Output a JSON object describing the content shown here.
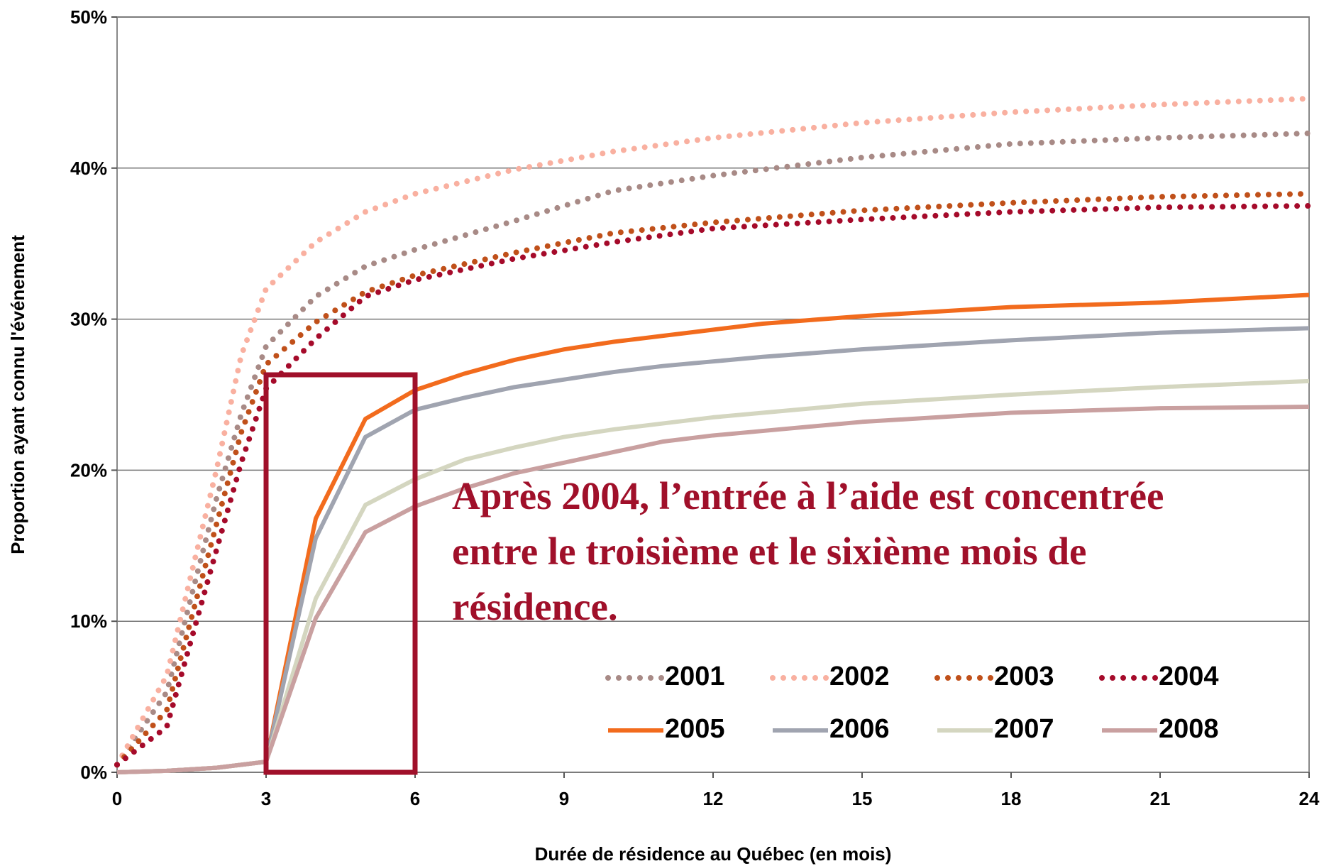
{
  "chart_data": {
    "type": "line",
    "xlabel": "Durée de résidence au Québec (en mois)",
    "ylabel": "Proportion ayant connu l'événement",
    "annotation": [
      "Après 2004, l’entrée à l’aide est concentrée",
      "entre le troisième et le sixième mois de",
      "résidence."
    ],
    "xlim": [
      0,
      24
    ],
    "xticks": [
      0,
      3,
      6,
      9,
      12,
      15,
      18,
      21,
      24
    ],
    "ylim": [
      0,
      50
    ],
    "yticks": [
      {
        "value": 0,
        "label": "0%"
      },
      {
        "value": 10,
        "label": "10%"
      },
      {
        "value": 20,
        "label": "20%"
      },
      {
        "value": 30,
        "label": "30%"
      },
      {
        "value": 40,
        "label": "40%"
      },
      {
        "value": 50,
        "label": "50%"
      }
    ],
    "grid": true,
    "series": [
      {
        "name": "2001",
        "color": "#a88a86",
        "style": "dotted",
        "x": [
          0,
          1,
          2,
          2.5,
          3,
          4,
          5,
          6,
          8,
          10,
          12,
          15,
          18,
          21,
          24
        ],
        "values": [
          0.5,
          5.3,
          18.1,
          23.7,
          28.2,
          31.5,
          33.5,
          34.6,
          36.5,
          38.5,
          39.5,
          40.7,
          41.6,
          42,
          42.3
        ]
      },
      {
        "name": "2002",
        "color": "#f9b0a0",
        "style": "dotted",
        "x": [
          0,
          1,
          2,
          2.5,
          3,
          4,
          5,
          6,
          8,
          10,
          12,
          15,
          18,
          21,
          24
        ],
        "values": [
          0.5,
          6.4,
          20,
          27.6,
          32,
          35.1,
          37.1,
          38.3,
          39.9,
          41.1,
          42,
          43,
          43.7,
          44.2,
          44.6
        ]
      },
      {
        "name": "2003",
        "color": "#c0501a",
        "style": "dotted",
        "x": [
          0,
          1,
          2,
          2.5,
          3,
          4,
          5,
          6,
          8,
          10,
          12,
          15,
          18,
          21,
          24
        ],
        "values": [
          0.5,
          4.1,
          16.4,
          22.5,
          27,
          29.8,
          31.8,
          32.9,
          34.4,
          35.7,
          36.4,
          37.2,
          37.7,
          38.1,
          38.3
        ]
      },
      {
        "name": "2004",
        "color": "#a50a2a",
        "style": "dotted",
        "x": [
          0,
          1,
          2,
          2.5,
          3,
          4,
          5,
          6,
          8,
          10,
          12,
          15,
          18,
          21,
          24
        ],
        "values": [
          0.5,
          3,
          14.7,
          20.5,
          25.4,
          28.7,
          31.5,
          32.6,
          34,
          35.1,
          36,
          36.6,
          37.1,
          37.4,
          37.5
        ]
      },
      {
        "name": "2005",
        "color": "#f26b1d",
        "style": "solid",
        "x": [
          0,
          1,
          2,
          3,
          4,
          5,
          6,
          7,
          8,
          9,
          10,
          11,
          12,
          13,
          15,
          18,
          21,
          24
        ],
        "values": [
          0,
          0.1,
          0.3,
          0.7,
          16.8,
          23.4,
          25.3,
          26.4,
          27.3,
          28,
          28.5,
          28.9,
          29.3,
          29.7,
          30.2,
          30.8,
          31.1,
          31.6
        ]
      },
      {
        "name": "2006",
        "color": "#a0a4b0",
        "style": "solid",
        "x": [
          0,
          1,
          2,
          3,
          4,
          5,
          6,
          7,
          8,
          9,
          10,
          11,
          12,
          13,
          15,
          18,
          21,
          24
        ],
        "values": [
          0,
          0.1,
          0.3,
          0.7,
          15.5,
          22.2,
          24,
          24.8,
          25.5,
          26,
          26.5,
          26.9,
          27.2,
          27.5,
          28,
          28.6,
          29.1,
          29.4
        ]
      },
      {
        "name": "2007",
        "color": "#d4d6c0",
        "style": "solid",
        "x": [
          0,
          1,
          2,
          3,
          4,
          5,
          6,
          7,
          8,
          9,
          10,
          11,
          12,
          13,
          15,
          18,
          21,
          24
        ],
        "values": [
          0,
          0.1,
          0.3,
          0.7,
          11.5,
          17.7,
          19.4,
          20.7,
          21.5,
          22.2,
          22.7,
          23.1,
          23.5,
          23.8,
          24.4,
          25,
          25.5,
          25.9
        ]
      },
      {
        "name": "2008",
        "color": "#c9a0a0",
        "style": "solid",
        "x": [
          0,
          1,
          2,
          3,
          4,
          5,
          6,
          7,
          8,
          9,
          10,
          11,
          12,
          13,
          15,
          18,
          21,
          24
        ],
        "values": [
          0,
          0.1,
          0.3,
          0.7,
          10.2,
          15.9,
          17.6,
          18.8,
          19.8,
          20.5,
          21.2,
          21.9,
          22.3,
          22.6,
          23.2,
          23.8,
          24.1,
          24.2
        ]
      }
    ]
  }
}
